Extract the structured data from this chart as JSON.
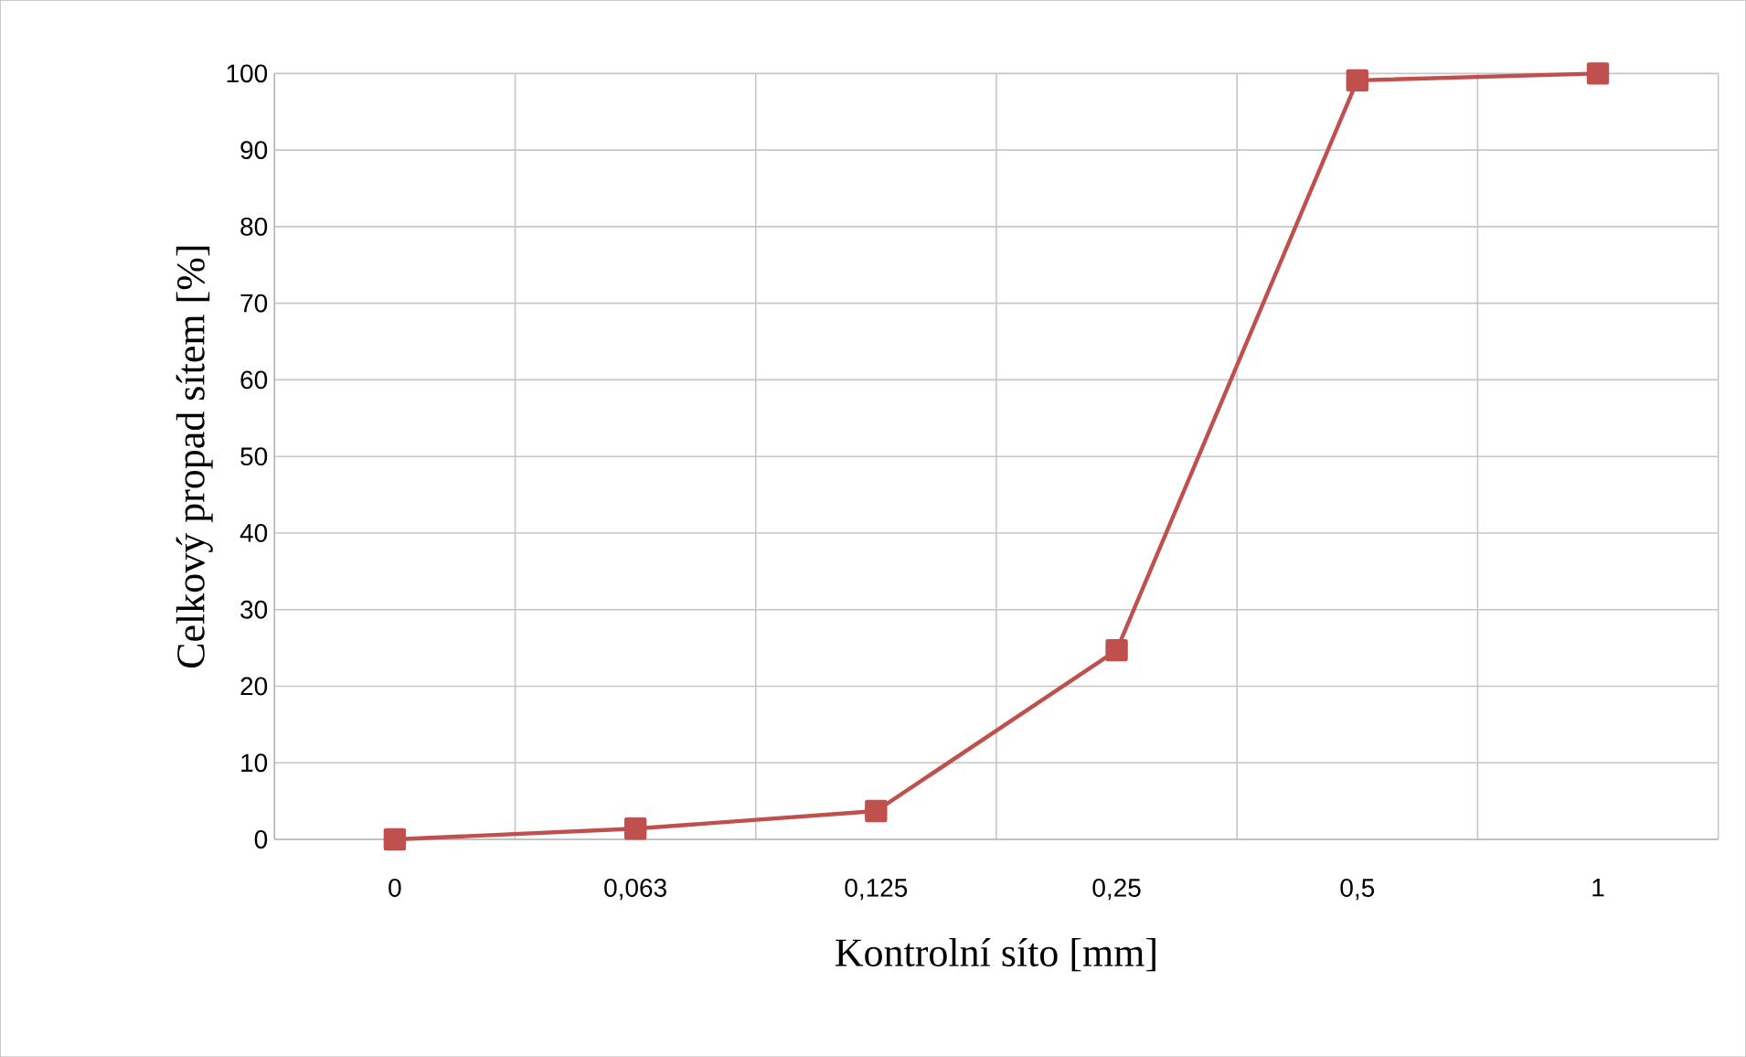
{
  "chart_data": {
    "type": "line",
    "xlabel": "Kontrolní síto [mm]",
    "ylabel": "Celkový propad sítem [%]",
    "categories": [
      "0",
      "0,063",
      "0,125",
      "0,25",
      "0,5",
      "1"
    ],
    "series": [
      {
        "color": "#c0504d",
        "values": [
          0,
          1.4,
          3.7,
          24.7,
          99.1,
          100
        ]
      }
    ],
    "ylim": [
      0,
      100
    ],
    "yticks": [
      0,
      10,
      20,
      30,
      40,
      50,
      60,
      70,
      80,
      90,
      100
    ],
    "grid": true,
    "marker": "square",
    "line_style": "solid"
  }
}
